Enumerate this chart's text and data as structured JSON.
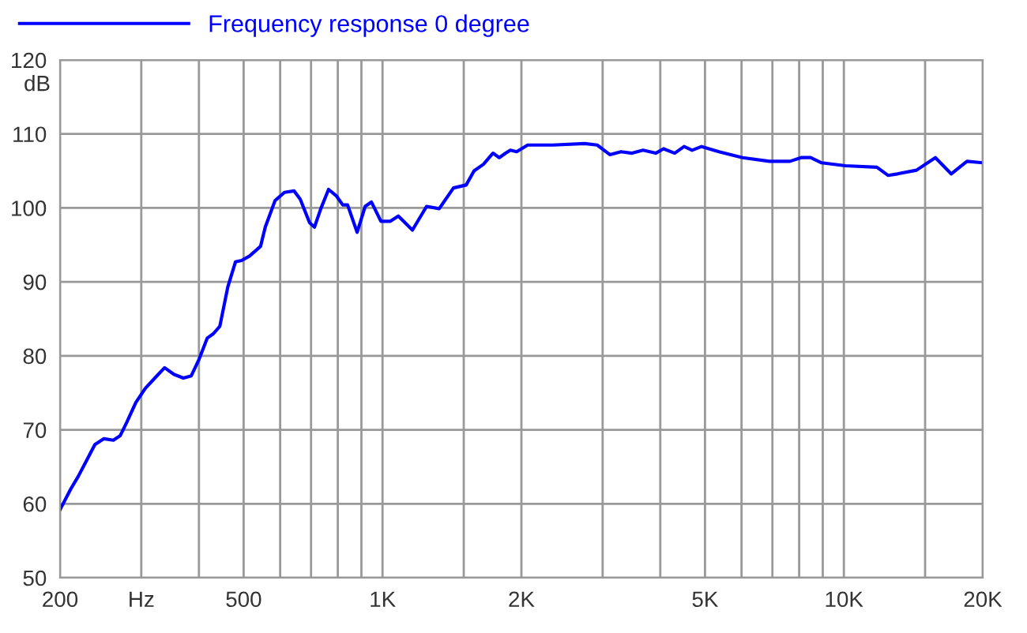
{
  "chart_data": {
    "type": "line",
    "ylabel": "dB",
    "log": "x",
    "grid": true,
    "legend": "top left",
    "line_style": "solid",
    "marker": "none",
    "xlim": [
      200,
      20000
    ],
    "ylim": [
      50,
      120
    ],
    "xticks": [
      200,
      {
        "value": 300,
        "label": "Hz"
      },
      {
        "value": 400,
        "label": null
      },
      500,
      {
        "value": 600,
        "label": null
      },
      {
        "value": 700,
        "label": null
      },
      {
        "value": 800,
        "label": null
      },
      {
        "value": 900,
        "label": null
      },
      {
        "value": 1000,
        "label": "1K"
      },
      {
        "value": 1500,
        "label": null
      },
      {
        "value": 2000,
        "label": "2K"
      },
      {
        "value": 3000,
        "label": null
      },
      {
        "value": 4000,
        "label": null
      },
      {
        "value": 5000,
        "label": "5K"
      },
      {
        "value": 6000,
        "label": null
      },
      {
        "value": 7000,
        "label": null
      },
      {
        "value": 8000,
        "label": null
      },
      {
        "value": 9000,
        "label": null
      },
      {
        "value": 10000,
        "label": "10K"
      },
      {
        "value": 15000,
        "label": null
      },
      {
        "value": 20000,
        "label": "20K"
      }
    ],
    "yticks": [
      50,
      60,
      70,
      80,
      90,
      100,
      110,
      120
    ],
    "series": [
      {
        "name": "Frequency response 0 degree",
        "color": "#0000ff",
        "x": [
          200,
          211,
          219,
          229,
          238,
          249,
          261,
          270,
          279,
          292,
          306,
          321,
          337,
          353,
          370,
          385,
          400,
          417,
          430,
          444,
          462,
          480,
          495,
          515,
          544,
          557,
          585,
          613,
          643,
          663,
          695,
          712,
          735,
          764,
          795,
          820,
          840,
          881,
          917,
          946,
          992,
          1040,
          1082,
          1161,
          1246,
          1327,
          1425,
          1518,
          1579,
          1655,
          1735,
          1791,
          1849,
          1893,
          1953,
          2064,
          2342,
          2742,
          2920,
          3110,
          3288,
          3474,
          3670,
          3910,
          4066,
          4298,
          4505,
          4688,
          4915,
          5360,
          6031,
          6898,
          7640,
          8077,
          8467,
          8949,
          10075,
          11792,
          12462,
          13066,
          14366,
          15789,
          17084,
          18487,
          20000
        ],
        "values": [
          59.2,
          62,
          63.7,
          66,
          68,
          68.8,
          68.6,
          69.2,
          71,
          73.7,
          75.6,
          77,
          78.4,
          77.5,
          77,
          77.3,
          79.5,
          82.4,
          83,
          84,
          89.3,
          92.7,
          92.9,
          93.5,
          94.8,
          97.4,
          101,
          102.1,
          102.3,
          101.2,
          98,
          97.4,
          99.9,
          102.5,
          101.6,
          100.4,
          100.4,
          96.7,
          100.2,
          100.8,
          98.2,
          98.2,
          98.9,
          97,
          100.2,
          99.9,
          102.7,
          103.1,
          105,
          105.9,
          107.4,
          106.8,
          107.4,
          107.8,
          107.6,
          108.5,
          108.5,
          108.7,
          108.5,
          107.2,
          107.6,
          107.4,
          107.8,
          107.4,
          108,
          107.4,
          108.3,
          107.8,
          108.3,
          107.6,
          106.8,
          106.3,
          106.3,
          106.8,
          106.8,
          106.1,
          105.7,
          105.5,
          104.4,
          104.6,
          105.1,
          106.8,
          104.6,
          106.3,
          106.1
        ]
      }
    ]
  }
}
